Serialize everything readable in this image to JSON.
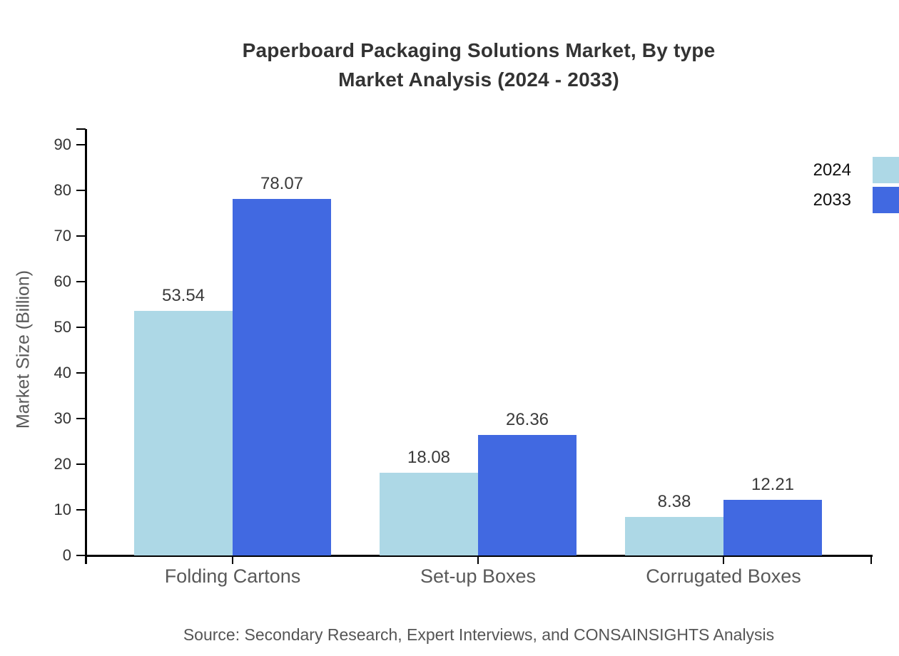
{
  "title": {
    "line1": "Paperboard Packaging Solutions Market, By type",
    "line2": "Market Analysis (2024 - 2033)"
  },
  "source": "Source: Secondary Research, Expert Interviews, and CONSAINSIGHTS Analysis",
  "chart_data": {
    "type": "bar",
    "title": "Paperboard Packaging Solutions Market, By type Market Analysis (2024 - 2033)",
    "categories": [
      "Folding Cartons",
      "Set-up Boxes",
      "Corrugated Boxes"
    ],
    "series": [
      {
        "name": "2024",
        "color": "#ADD8E6",
        "values": [
          53.54,
          18.08,
          8.38
        ]
      },
      {
        "name": "2033",
        "color": "#4169E1",
        "values": [
          78.07,
          26.36,
          12.21
        ]
      }
    ],
    "xlabel": "",
    "ylabel": "Market Size (Billion)",
    "ylim": [
      0,
      95
    ],
    "yticks": [
      0,
      10,
      20,
      30,
      40,
      50,
      60,
      70,
      80,
      90
    ],
    "grid": false,
    "value_labels": true,
    "legend_position": "top-right",
    "axis_color": "#000000",
    "text_color": "#333333",
    "muted_text_color": "#595959"
  }
}
